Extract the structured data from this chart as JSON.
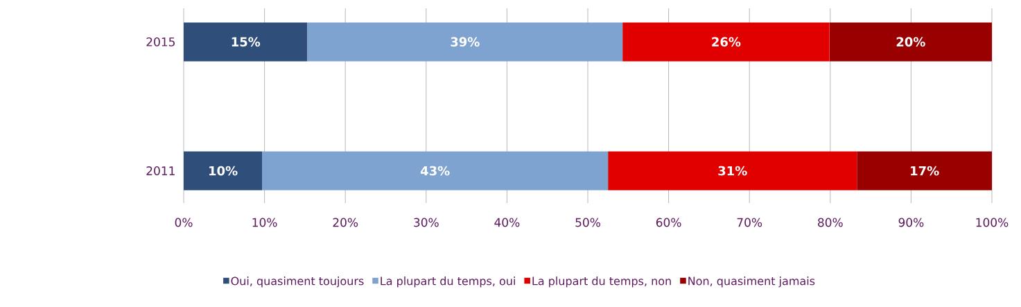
{
  "chart_data": {
    "type": "bar",
    "orientation": "horizontal",
    "stacked": true,
    "categories": [
      "2015",
      "2011"
    ],
    "series": [
      {
        "name": "Oui, quasiment toujours",
        "color": "#2f4e7a",
        "values": [
          15.3,
          9.7
        ],
        "value_labels": [
          "15%",
          "10%"
        ]
      },
      {
        "name": "La plupart du temps, oui",
        "color": "#7fa3d1",
        "values": [
          39.0,
          42.8
        ],
        "value_labels": [
          "39%",
          "43%"
        ]
      },
      {
        "name": "La plupart du temps, non",
        "color": "#e00000",
        "values": [
          25.6,
          30.8
        ],
        "value_labels": [
          "26%",
          "31%"
        ]
      },
      {
        "name": "Non, quasiment jamais",
        "color": "#990000",
        "values": [
          20.1,
          16.7
        ],
        "value_labels": [
          "20%",
          "17%"
        ]
      }
    ],
    "xlim": [
      0,
      100
    ],
    "xticks": [
      {
        "value": 0,
        "label": "0%"
      },
      {
        "value": 10,
        "label": "10%"
      },
      {
        "value": 20,
        "label": "20%"
      },
      {
        "value": 30,
        "label": "30%"
      },
      {
        "value": 40,
        "label": "40%"
      },
      {
        "value": 50,
        "label": "50%"
      },
      {
        "value": 60,
        "label": "60%"
      },
      {
        "value": 70,
        "label": "70%"
      },
      {
        "value": 80,
        "label": "80%"
      },
      {
        "value": 90,
        "label": "90%"
      },
      {
        "value": 100,
        "label": "100%"
      }
    ],
    "grid": "x",
    "legend": "bottom"
  }
}
